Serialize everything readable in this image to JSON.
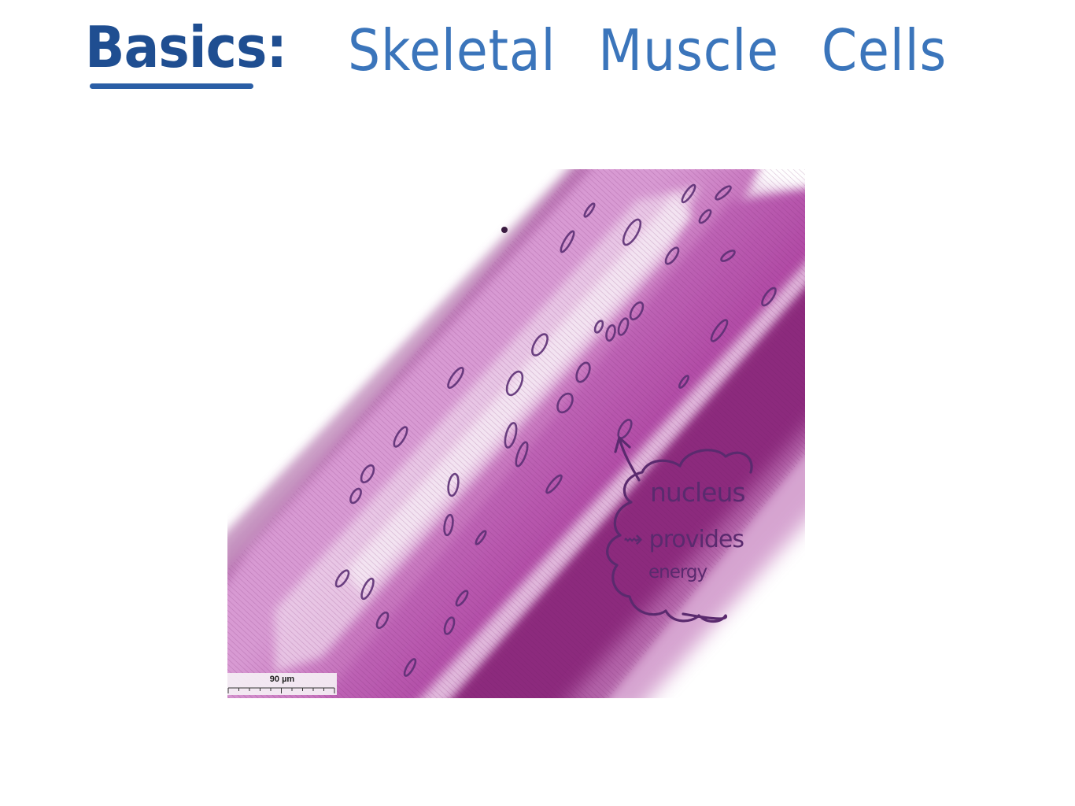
{
  "title": {
    "prefix": "Basics:",
    "main": "Skeletal Muscle Cells"
  },
  "micrograph": {
    "scale_bar_label": "90 µm"
  },
  "annotation": {
    "label": "nucleus",
    "arrow_text": "⇝ provides",
    "continuation": "energy"
  },
  "colors": {
    "title_dark_blue": "#1f4e91",
    "title_blue": "#3b75bb",
    "fiber_purple": "#a0338f",
    "annotation_purple": "#5a2a6e"
  }
}
